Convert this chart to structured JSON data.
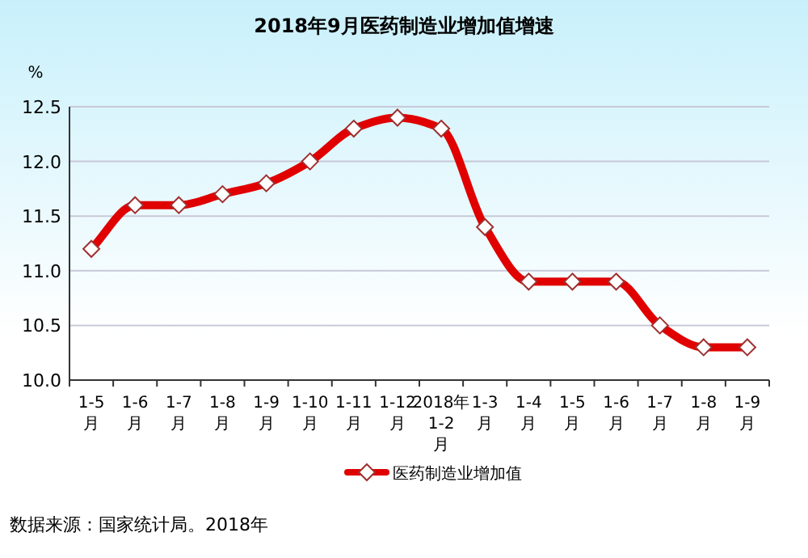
{
  "chart_data": {
    "type": "line",
    "title": "2018年9月医药制造业增加值增速",
    "ylabel": "%",
    "categories": [
      "1-5月",
      "1-6月",
      "1-7月",
      "1-8月",
      "1-9月",
      "1-10月",
      "1-11月",
      "1-12月",
      "2018年1-2月",
      "1-3月",
      "1-4月",
      "1-5月",
      "1-6月",
      "1-7月",
      "1-8月",
      "1-9月"
    ],
    "series": [
      {
        "name": "医药制造业增加值",
        "color": "#e00000",
        "values": [
          11.2,
          11.6,
          11.6,
          11.7,
          11.8,
          12.0,
          12.3,
          12.4,
          12.3,
          11.4,
          10.9,
          10.9,
          10.9,
          10.5,
          10.3,
          10.3
        ]
      }
    ],
    "ylim": [
      10.0,
      12.5
    ],
    "yticks": [
      {
        "value": 10.0,
        "label": "10.0"
      },
      {
        "value": 10.5,
        "label": "10.5"
      },
      {
        "value": 11.0,
        "label": "11.0"
      },
      {
        "value": 11.5,
        "label": "11.5"
      },
      {
        "value": 12.0,
        "label": "12.0"
      },
      {
        "value": 12.5,
        "label": "12.5"
      }
    ],
    "grid": "y",
    "legend": "bottom",
    "marker": "diamond",
    "line_style": "solid",
    "annotations": [
      "数据来源：国家统计局。2018年"
    ]
  }
}
